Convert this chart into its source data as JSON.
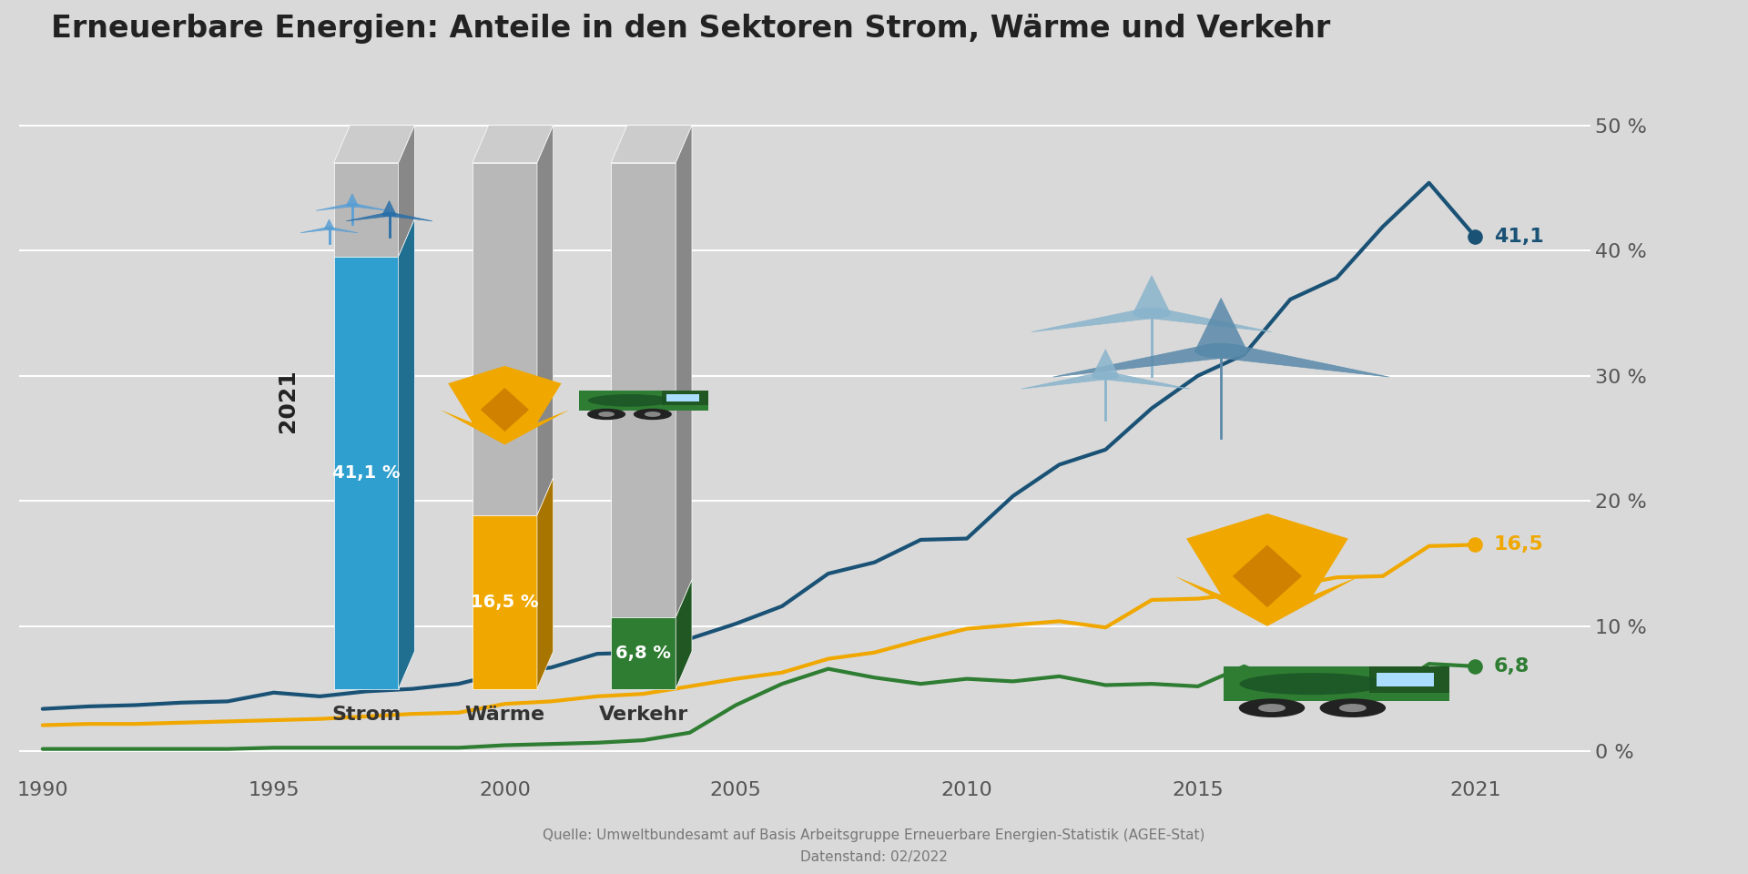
{
  "title": "Erneuerbare Energien: Anteile in den Sektoren Strom, Wärme und Verkehr",
  "background_color": "#d9d9d9",
  "years": [
    1990,
    1991,
    1992,
    1993,
    1994,
    1995,
    1996,
    1997,
    1998,
    1999,
    2000,
    2001,
    2002,
    2003,
    2004,
    2005,
    2006,
    2007,
    2008,
    2009,
    2010,
    2011,
    2012,
    2013,
    2014,
    2015,
    2016,
    2017,
    2018,
    2019,
    2020,
    2021
  ],
  "strom": [
    3.4,
    3.6,
    3.7,
    3.9,
    4.0,
    4.7,
    4.4,
    4.8,
    5.0,
    5.4,
    6.3,
    6.7,
    7.8,
    7.9,
    9.0,
    10.2,
    11.6,
    14.2,
    15.1,
    16.9,
    17.0,
    20.4,
    22.9,
    24.1,
    27.4,
    30.0,
    31.7,
    36.1,
    37.8,
    41.9,
    45.4,
    41.1
  ],
  "waerme": [
    2.1,
    2.2,
    2.2,
    2.3,
    2.4,
    2.5,
    2.6,
    2.8,
    3.0,
    3.1,
    3.8,
    4.0,
    4.4,
    4.6,
    5.2,
    5.8,
    6.3,
    7.4,
    7.9,
    8.9,
    9.8,
    10.1,
    10.4,
    9.9,
    12.1,
    12.2,
    12.6,
    13.2,
    13.9,
    14.0,
    16.4,
    16.5
  ],
  "verkehr": [
    0.2,
    0.2,
    0.2,
    0.2,
    0.2,
    0.3,
    0.3,
    0.3,
    0.3,
    0.3,
    0.5,
    0.6,
    0.7,
    0.9,
    1.5,
    3.7,
    5.4,
    6.6,
    5.9,
    5.4,
    5.8,
    5.6,
    6.0,
    5.3,
    5.4,
    5.2,
    6.8,
    5.2,
    5.2,
    4.6,
    7.0,
    6.8
  ],
  "strom_color": "#1a5276",
  "waerme_color": "#f0a800",
  "verkehr_color": "#2e7d32",
  "strom_bar_fill": "#2e9fce",
  "waerme_bar_fill": "#f0a800",
  "verkehr_bar_fill": "#2e7d32",
  "bar_gray": "#b0b0b0",
  "bar_gray_dark": "#888888",
  "bar_gray_top": "#c8c8c8",
  "ylabel_values": [
    0,
    10,
    20,
    30,
    40,
    50
  ],
  "ylabel_labels": [
    "0 %",
    "10 %",
    "20 %",
    "30 %",
    "40 %",
    "50 %"
  ],
  "source_text": "Quelle: Umweltbundesamt auf Basis Arbeitsgruppe Erneuerbare Energien-Statistik (AGEE-Stat)",
  "date_text": "Datenstand: 02/2022",
  "xticks": [
    1990,
    1995,
    2000,
    2005,
    2010,
    2015,
    2021
  ],
  "end_labels": {
    "strom": "41,1",
    "waerme": "16,5",
    "verkehr": "6,8"
  },
  "year_label": "2021",
  "bar_labels": {
    "strom": "Strom",
    "waerme": "Wärme",
    "verkehr": "Verkehr"
  },
  "bar_pct": {
    "strom": "41,1 %",
    "waerme": "16,5 %",
    "verkehr": "6,8 %"
  }
}
